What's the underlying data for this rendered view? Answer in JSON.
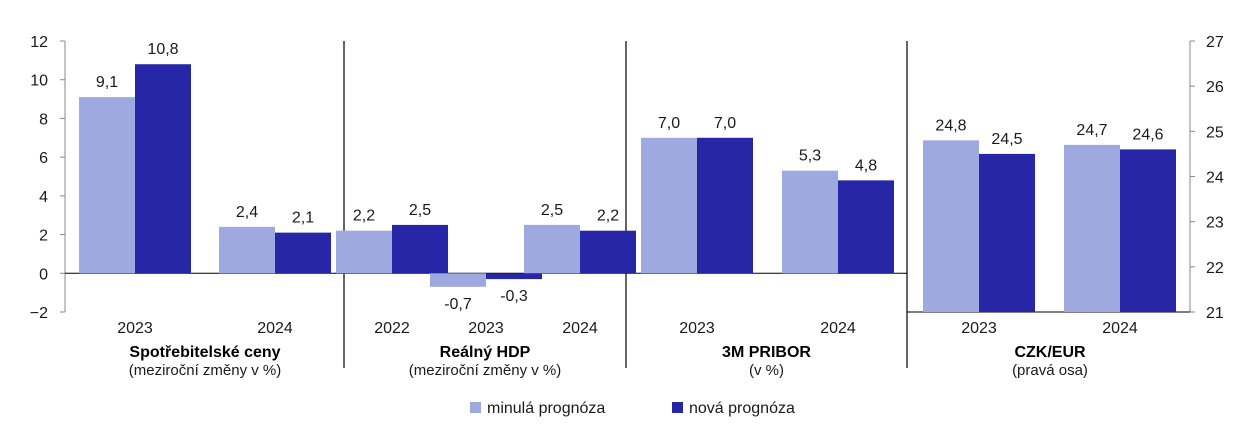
{
  "colors": {
    "old": "#9ea9e0",
    "new": "#2626a6",
    "axis": "#000000",
    "tickline": "#8a8a8a"
  },
  "legend": {
    "old_label": "minulá prognóza",
    "new_label": "nová prognóza"
  },
  "chart_data": {
    "type": "bar",
    "grid": false,
    "legend_position": "bottom-center",
    "left_axis": {
      "ylim": [
        -2,
        12
      ],
      "ticks": [
        -2,
        0,
        2,
        4,
        6,
        8,
        10,
        12
      ],
      "tick_labels": [
        "−2",
        "0",
        "2",
        "4",
        "6",
        "8",
        "10",
        "12"
      ]
    },
    "right_axis": {
      "ylim": [
        21,
        27
      ],
      "ticks": [
        21,
        22,
        23,
        24,
        25,
        26,
        27
      ],
      "tick_labels": [
        "21",
        "22",
        "23",
        "24",
        "25",
        "26",
        "27"
      ]
    },
    "groups": [
      {
        "title": "Spotřebitelské ceny",
        "subtitle": "(meziroční změny v %)",
        "axis": "left",
        "categories": [
          "2023",
          "2024"
        ],
        "series": [
          {
            "name": "minulá prognóza",
            "values": [
              9.1,
              2.4
            ],
            "labels": [
              "9,1",
              "2,4"
            ]
          },
          {
            "name": "nová prognóza",
            "values": [
              10.8,
              2.1
            ],
            "labels": [
              "10,8",
              "2,1"
            ]
          }
        ]
      },
      {
        "title": "Reálný HDP",
        "subtitle": "(meziroční změny v %)",
        "axis": "left",
        "categories": [
          "2022",
          "2023",
          "2024"
        ],
        "series": [
          {
            "name": "minulá prognóza",
            "values": [
              2.2,
              -0.7,
              2.5
            ],
            "labels": [
              "2,2",
              "-0,7",
              "2,5"
            ]
          },
          {
            "name": "nová prognóza",
            "values": [
              2.5,
              -0.3,
              2.2
            ],
            "labels": [
              "2,5",
              "-0,3",
              "2,2"
            ]
          }
        ]
      },
      {
        "title": "3M PRIBOR",
        "subtitle": "(v %)",
        "axis": "left",
        "categories": [
          "2023",
          "2024"
        ],
        "series": [
          {
            "name": "minulá prognóza",
            "values": [
              7.0,
              5.3
            ],
            "labels": [
              "7,0",
              "5,3"
            ]
          },
          {
            "name": "nová prognóza",
            "values": [
              7.0,
              4.8
            ],
            "labels": [
              "7,0",
              "4,8"
            ]
          }
        ]
      },
      {
        "title": "CZK/EUR",
        "subtitle": "(pravá osa)",
        "axis": "right",
        "categories": [
          "2023",
          "2024"
        ],
        "series": [
          {
            "name": "minulá prognóza",
            "values": [
              24.8,
              24.7
            ],
            "labels": [
              "24,8",
              "24,7"
            ]
          },
          {
            "name": "nová prognóza",
            "values": [
              24.5,
              24.6
            ],
            "labels": [
              "24,5",
              "24,6"
            ]
          }
        ]
      }
    ]
  }
}
